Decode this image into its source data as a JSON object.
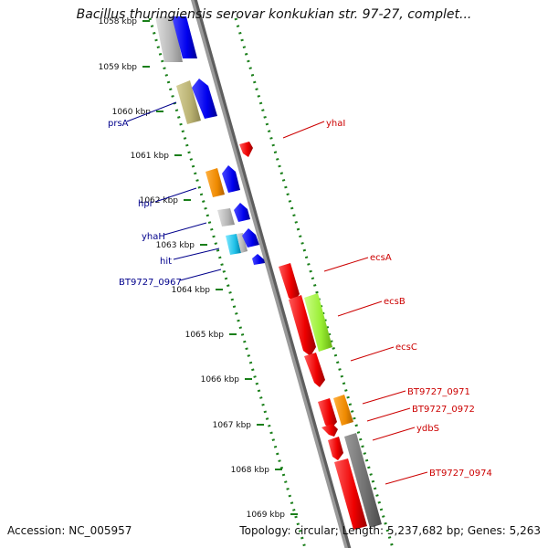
{
  "title": "Bacillus thuringiensis serovar konkukian str. 97-27, complet...",
  "accession": "Accession: NC_005957",
  "summary": "Topology: circular; Length: 5,237,682 bp; Genes: 5,263",
  "colors": {
    "forward_label": "#00008b",
    "reverse_label": "#cc0000",
    "backbone": "#8a8a8a",
    "tick": "#1a7f1a"
  },
  "ticks": [
    {
      "label": "1058 kbp"
    },
    {
      "label": "1059 kbp"
    },
    {
      "label": "1060 kbp"
    },
    {
      "label": "1061 kbp"
    },
    {
      "label": "1062 kbp"
    },
    {
      "label": "1063 kbp"
    },
    {
      "label": "1064 kbp"
    },
    {
      "label": "1065 kbp"
    },
    {
      "label": "1066 kbp"
    },
    {
      "label": "1067 kbp"
    },
    {
      "label": "1068 kbp"
    },
    {
      "label": "1069 kbp"
    }
  ],
  "forward_labels": [
    "prsA",
    "hpr",
    "yhaH",
    "hit",
    "BT9727_0967"
  ],
  "reverse_labels": [
    "yhaI",
    "ecsA",
    "ecsB",
    "ecsC",
    "BT9727_0971",
    "BT9727_0972",
    "ydbS",
    "BT9727_0974"
  ]
}
